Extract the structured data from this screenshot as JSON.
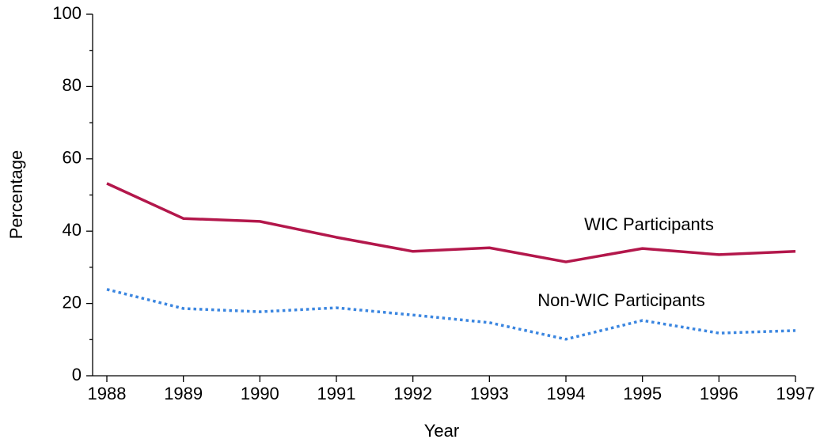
{
  "chart_data": {
    "type": "line",
    "x_label": "Year",
    "y_label": "Percentage",
    "categories": [
      "1988",
      "1989",
      "1990",
      "1991",
      "1992",
      "1993",
      "1994",
      "1995",
      "1996",
      "1997"
    ],
    "series": [
      {
        "name": "WIC Participants",
        "color": "#b3174b",
        "style": "solid",
        "values": [
          53.2,
          43.5,
          42.7,
          38.3,
          34.4,
          35.4,
          31.5,
          35.2,
          33.5,
          34.4
        ]
      },
      {
        "name": "Non-WIC Participants",
        "color": "#3b86e0",
        "style": "dotted",
        "values": [
          23.9,
          18.6,
          17.7,
          18.8,
          16.8,
          14.7,
          10.1,
          15.3,
          11.8,
          12.5
        ]
      }
    ],
    "ylim": [
      0,
      100
    ],
    "yticks": [
      0,
      20,
      40,
      60,
      80,
      100
    ],
    "yminorticks": [
      10,
      30,
      50,
      70,
      90
    ]
  }
}
